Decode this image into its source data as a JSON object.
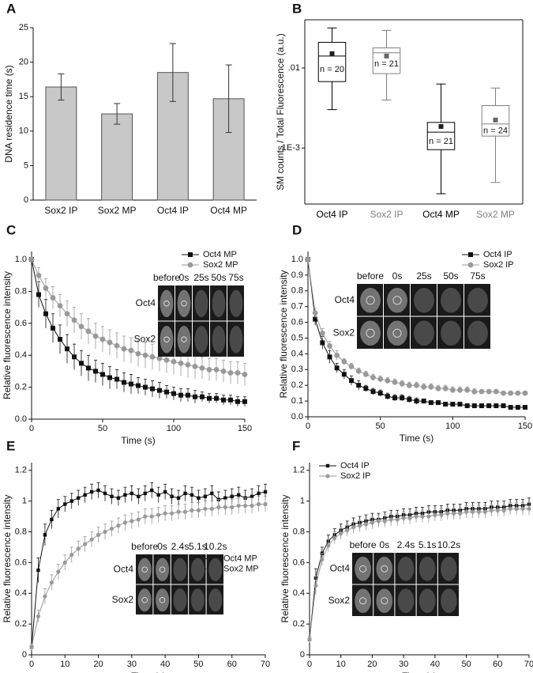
{
  "chart_data": [
    {
      "type": "bar",
      "panel_label": "A",
      "ylabel": "DNA residence time (s)",
      "categories": [
        "Sox2 IP",
        "Sox2 MP",
        "Oct4 IP",
        "Oct4 MP"
      ],
      "values": [
        16.4,
        12.5,
        18.5,
        14.7
      ],
      "errors": [
        1.9,
        1.5,
        4.2,
        4.9
      ],
      "color": "#c8c8c8",
      "ylim": [
        0,
        25
      ],
      "yticks": [
        0,
        5,
        10,
        15,
        20,
        25
      ]
    },
    {
      "type": "box",
      "panel_label": "B",
      "ylabel": "SM counts / Total Fluorescence (a.u.)",
      "categories": [
        "Oct4 IP",
        "Sox2 IP",
        "Oct4 MP",
        "Sox2 MP"
      ],
      "category_colors": [
        "#000000",
        "#808080",
        "#000000",
        "#808080"
      ],
      "whisker_low": [
        0.00302,
        0.00398,
        0.000269,
        0.000372
      ],
      "q1": [
        0.00676,
        0.0085,
        0.000955,
        0.00141
      ],
      "median": [
        0.0141,
        0.0155,
        0.00158,
        0.002
      ],
      "q3": [
        0.0209,
        0.0178,
        0.00209,
        0.00339
      ],
      "whisker_high": [
        0.0316,
        0.0295,
        0.00631,
        0.00562
      ],
      "mean": [
        0.0151,
        0.0141,
        0.00186,
        0.00224
      ],
      "n_labels": [
        "n = 20",
        "n = 21",
        "n = 21",
        "n = 24"
      ],
      "log_scale": true,
      "ylim": [
        0.0002,
        0.04
      ],
      "yticks": [
        {
          "value": 0.01,
          "label": ".01"
        },
        {
          "value": 0.001,
          "label": "1E-3"
        }
      ]
    },
    {
      "type": "line",
      "panel_label": "C",
      "xlabel": "Time (s)",
      "ylabel": "Relative fluorescence intensity",
      "x": [
        0,
        5,
        10,
        15,
        20,
        25,
        30,
        35,
        40,
        45,
        50,
        55,
        60,
        65,
        70,
        75,
        80,
        85,
        90,
        95,
        100,
        105,
        110,
        115,
        120,
        125,
        130,
        135,
        140,
        145,
        150
      ],
      "series": [
        {
          "name": "Oct4 MP",
          "color": "#111111",
          "marker": "square",
          "values": [
            1.0,
            0.78,
            0.66,
            0.57,
            0.5,
            0.44,
            0.39,
            0.35,
            0.32,
            0.3,
            0.28,
            0.26,
            0.25,
            0.23,
            0.22,
            0.21,
            0.2,
            0.19,
            0.18,
            0.17,
            0.16,
            0.15,
            0.15,
            0.14,
            0.14,
            0.13,
            0.13,
            0.12,
            0.12,
            0.11,
            0.11
          ],
          "errors": [
            0,
            0.08,
            0.09,
            0.09,
            0.09,
            0.09,
            0.08,
            0.08,
            0.08,
            0.07,
            0.07,
            0.07,
            0.06,
            0.06,
            0.06,
            0.05,
            0.05,
            0.05,
            0.05,
            0.04,
            0.04,
            0.04,
            0.04,
            0.04,
            0.03,
            0.03,
            0.03,
            0.03,
            0.03,
            0.03,
            0.03
          ]
        },
        {
          "name": "Sox2 MP",
          "color": "#999999",
          "marker": "circle",
          "values": [
            1.0,
            0.9,
            0.82,
            0.76,
            0.71,
            0.66,
            0.62,
            0.58,
            0.55,
            0.52,
            0.5,
            0.48,
            0.46,
            0.44,
            0.43,
            0.41,
            0.4,
            0.39,
            0.38,
            0.37,
            0.36,
            0.35,
            0.34,
            0.33,
            0.32,
            0.31,
            0.31,
            0.3,
            0.29,
            0.29,
            0.28
          ],
          "errors": [
            0,
            0.05,
            0.06,
            0.07,
            0.07,
            0.08,
            0.08,
            0.08,
            0.08,
            0.08,
            0.08,
            0.08,
            0.08,
            0.08,
            0.08,
            0.08,
            0.08,
            0.08,
            0.08,
            0.08,
            0.08,
            0.08,
            0.08,
            0.08,
            0.07,
            0.07,
            0.07,
            0.07,
            0.07,
            0.07,
            0.07
          ]
        }
      ],
      "legend": "upper right",
      "xlim": [
        0,
        150
      ],
      "xticks": [
        0,
        50,
        100,
        150
      ],
      "ylim": [
        0,
        1.05
      ],
      "yticks": [
        {
          "value": 0,
          "label": "0.0"
        },
        {
          "value": 0.2,
          "label": "0.2"
        },
        {
          "value": 0.4,
          "label": "0.4"
        },
        {
          "value": 0.6,
          "label": "0.6"
        },
        {
          "value": 0.8,
          "label": "0.8"
        },
        {
          "value": 1,
          "label": "1.0"
        }
      ],
      "inset": {
        "columns": [
          "before",
          "0s",
          "25s",
          "50s",
          "75s"
        ],
        "rows": [
          "Oct4",
          "Sox2"
        ]
      }
    },
    {
      "type": "line",
      "panel_label": "D",
      "xlabel": "Time (s)",
      "ylabel": "Relative fluorescence intensity",
      "x": [
        0,
        5,
        10,
        15,
        20,
        25,
        30,
        35,
        40,
        45,
        50,
        55,
        60,
        65,
        70,
        75,
        80,
        85,
        90,
        95,
        100,
        105,
        110,
        115,
        120,
        125,
        130,
        135,
        140,
        145,
        150
      ],
      "series": [
        {
          "name": "Oct4 IP",
          "color": "#111111",
          "marker": "square",
          "values": [
            1.0,
            0.62,
            0.47,
            0.38,
            0.31,
            0.27,
            0.23,
            0.2,
            0.18,
            0.16,
            0.15,
            0.13,
            0.12,
            0.12,
            0.11,
            0.1,
            0.1,
            0.09,
            0.09,
            0.08,
            0.08,
            0.08,
            0.07,
            0.07,
            0.07,
            0.07,
            0.07,
            0.07,
            0.06,
            0.06,
            0.06
          ],
          "errors": [
            0,
            0.04,
            0.04,
            0.04,
            0.03,
            0.03,
            0.03,
            0.03,
            0.02,
            0.02,
            0.02,
            0.02,
            0.02,
            0.02,
            0.02,
            0.02,
            0.01,
            0.01,
            0.01,
            0.01,
            0.01,
            0.01,
            0.01,
            0.01,
            0.01,
            0.01,
            0.01,
            0.01,
            0.01,
            0.01,
            0.01
          ]
        },
        {
          "name": "Sox2 IP",
          "color": "#999999",
          "marker": "circle",
          "values": [
            1.0,
            0.66,
            0.53,
            0.45,
            0.39,
            0.35,
            0.32,
            0.29,
            0.27,
            0.25,
            0.24,
            0.23,
            0.22,
            0.21,
            0.2,
            0.2,
            0.19,
            0.19,
            0.18,
            0.18,
            0.17,
            0.17,
            0.17,
            0.16,
            0.16,
            0.16,
            0.16,
            0.15,
            0.15,
            0.15,
            0.15
          ],
          "errors": [
            0,
            0.03,
            0.03,
            0.03,
            0.03,
            0.02,
            0.02,
            0.02,
            0.02,
            0.02,
            0.02,
            0.02,
            0.02,
            0.02,
            0.02,
            0.02,
            0.02,
            0.02,
            0.02,
            0.02,
            0.02,
            0.02,
            0.02,
            0.02,
            0.01,
            0.01,
            0.01,
            0.01,
            0.01,
            0.01,
            0.01
          ]
        }
      ],
      "legend": "upper right",
      "xlim": [
        0,
        150
      ],
      "xticks": [
        0,
        50,
        100,
        150
      ],
      "ylim": [
        0,
        1.05
      ],
      "yticks": [
        {
          "value": 0,
          "label": "0.0"
        },
        0.1,
        0.2,
        0.3,
        0.4,
        0.5,
        0.6,
        0.7,
        0.8,
        0.9,
        {
          "value": 1,
          "label": "1.0"
        }
      ],
      "inset": {
        "columns": [
          "before",
          "0s",
          "25s",
          "50s",
          "75s"
        ],
        "rows": [
          "Oct4",
          "Sox2"
        ]
      }
    },
    {
      "type": "line",
      "panel_label": "E",
      "xlabel": "Time (s)",
      "ylabel": "Relative fluorescence intensity",
      "x": [
        0,
        2,
        4,
        6,
        8,
        10,
        12,
        14,
        16,
        18,
        20,
        22,
        24,
        26,
        28,
        30,
        32,
        34,
        36,
        38,
        40,
        42,
        44,
        46,
        48,
        50,
        52,
        54,
        56,
        58,
        60,
        62,
        64,
        66,
        68,
        70
      ],
      "series": [
        {
          "name": "Oct4 MP",
          "color": "#111111",
          "marker": "square",
          "values": [
            0.05,
            0.55,
            0.78,
            0.88,
            0.95,
            0.98,
            1.0,
            1.02,
            1.04,
            1.06,
            1.07,
            1.05,
            1.03,
            1.02,
            1.04,
            1.05,
            1.03,
            1.05,
            1.07,
            1.04,
            1.06,
            1.03,
            1.02,
            1.05,
            1.04,
            1.02,
            1.03,
            1.05,
            1.01,
            1.02,
            1.03,
            1.04,
            1.02,
            1.03,
            1.05,
            1.06
          ],
          "errors": [
            0.02,
            0.08,
            0.07,
            0.06,
            0.06,
            0.05,
            0.05,
            0.05,
            0.05,
            0.05,
            0.05,
            0.05,
            0.05,
            0.05,
            0.05,
            0.05,
            0.05,
            0.05,
            0.05,
            0.05,
            0.05,
            0.05,
            0.05,
            0.05,
            0.05,
            0.05,
            0.05,
            0.05,
            0.05,
            0.05,
            0.05,
            0.05,
            0.05,
            0.05,
            0.05,
            0.05
          ]
        },
        {
          "name": "Sox2 MP",
          "color": "#999999",
          "marker": "circle",
          "values": [
            0.05,
            0.25,
            0.38,
            0.47,
            0.54,
            0.6,
            0.65,
            0.69,
            0.72,
            0.75,
            0.78,
            0.8,
            0.82,
            0.84,
            0.86,
            0.87,
            0.88,
            0.9,
            0.9,
            0.91,
            0.92,
            0.92,
            0.93,
            0.93,
            0.94,
            0.94,
            0.95,
            0.95,
            0.96,
            0.96,
            0.96,
            0.97,
            0.97,
            0.97,
            0.98,
            0.98
          ],
          "errors": [
            0.02,
            0.04,
            0.05,
            0.05,
            0.05,
            0.05,
            0.05,
            0.05,
            0.05,
            0.05,
            0.05,
            0.05,
            0.05,
            0.05,
            0.05,
            0.05,
            0.05,
            0.05,
            0.05,
            0.05,
            0.05,
            0.05,
            0.05,
            0.05,
            0.05,
            0.05,
            0.05,
            0.05,
            0.05,
            0.05,
            0.05,
            0.05,
            0.05,
            0.05,
            0.05,
            0.05
          ]
        }
      ],
      "legend": "center right",
      "xlim": [
        0,
        70
      ],
      "xticks": [
        0,
        10,
        20,
        30,
        40,
        50,
        60,
        70
      ],
      "ylim": [
        0,
        1.25
      ],
      "yticks": [
        0,
        0.2,
        0.4,
        0.6,
        0.8,
        1,
        1.2
      ],
      "inset": {
        "columns": [
          "before",
          "0s",
          "2.4s",
          "5.1s",
          "10.2s"
        ],
        "rows": [
          "Oct4",
          "Sox2"
        ]
      }
    },
    {
      "type": "line",
      "panel_label": "F",
      "xlabel": "Time (s)",
      "ylabel": "Relative fluorescence intensity",
      "x": [
        0,
        2,
        4,
        6,
        8,
        10,
        12,
        14,
        16,
        18,
        20,
        22,
        24,
        26,
        28,
        30,
        32,
        34,
        36,
        38,
        40,
        42,
        44,
        46,
        48,
        50,
        52,
        54,
        56,
        58,
        60,
        62,
        64,
        66,
        68,
        70
      ],
      "series": [
        {
          "name": "Oct4 IP",
          "color": "#111111",
          "marker": "square",
          "values": [
            0.1,
            0.5,
            0.66,
            0.74,
            0.78,
            0.81,
            0.83,
            0.85,
            0.86,
            0.87,
            0.88,
            0.88,
            0.89,
            0.9,
            0.9,
            0.91,
            0.91,
            0.92,
            0.92,
            0.93,
            0.93,
            0.93,
            0.94,
            0.94,
            0.94,
            0.95,
            0.95,
            0.95,
            0.95,
            0.96,
            0.96,
            0.96,
            0.97,
            0.97,
            0.97,
            0.98
          ],
          "errors": [
            0.02,
            0.06,
            0.04,
            0.04,
            0.04,
            0.04,
            0.04,
            0.04,
            0.04,
            0.04,
            0.04,
            0.04,
            0.04,
            0.04,
            0.04,
            0.04,
            0.04,
            0.04,
            0.04,
            0.04,
            0.04,
            0.04,
            0.04,
            0.04,
            0.04,
            0.04,
            0.04,
            0.04,
            0.04,
            0.04,
            0.04,
            0.04,
            0.04,
            0.04,
            0.04,
            0.04
          ]
        },
        {
          "name": "Sox2 IP",
          "color": "#999999",
          "marker": "circle",
          "values": [
            0.1,
            0.45,
            0.62,
            0.71,
            0.76,
            0.79,
            0.81,
            0.83,
            0.84,
            0.85,
            0.86,
            0.87,
            0.87,
            0.88,
            0.88,
            0.89,
            0.89,
            0.9,
            0.9,
            0.9,
            0.91,
            0.91,
            0.92,
            0.92,
            0.92,
            0.93,
            0.93,
            0.93,
            0.93,
            0.94,
            0.94,
            0.94,
            0.95,
            0.95,
            0.95,
            0.95
          ],
          "errors": [
            0.02,
            0.06,
            0.04,
            0.04,
            0.04,
            0.04,
            0.04,
            0.04,
            0.04,
            0.04,
            0.04,
            0.04,
            0.04,
            0.04,
            0.04,
            0.04,
            0.04,
            0.04,
            0.04,
            0.04,
            0.04,
            0.04,
            0.04,
            0.04,
            0.04,
            0.04,
            0.04,
            0.04,
            0.04,
            0.04,
            0.04,
            0.04,
            0.04,
            0.04,
            0.04,
            0.04
          ]
        }
      ],
      "legend": "upper left",
      "xlim": [
        0,
        70
      ],
      "xticks": [
        0,
        10,
        20,
        30,
        40,
        50,
        60,
        70
      ],
      "ylim": [
        0,
        1.25
      ],
      "yticks": [
        0,
        0.2,
        0.4,
        0.6,
        0.8,
        1,
        1.2
      ],
      "inset": {
        "columns": [
          "before",
          "0s",
          "2.4s",
          "5.1s",
          "10.2s"
        ],
        "rows": [
          "Oct4",
          "Sox2"
        ]
      }
    }
  ]
}
